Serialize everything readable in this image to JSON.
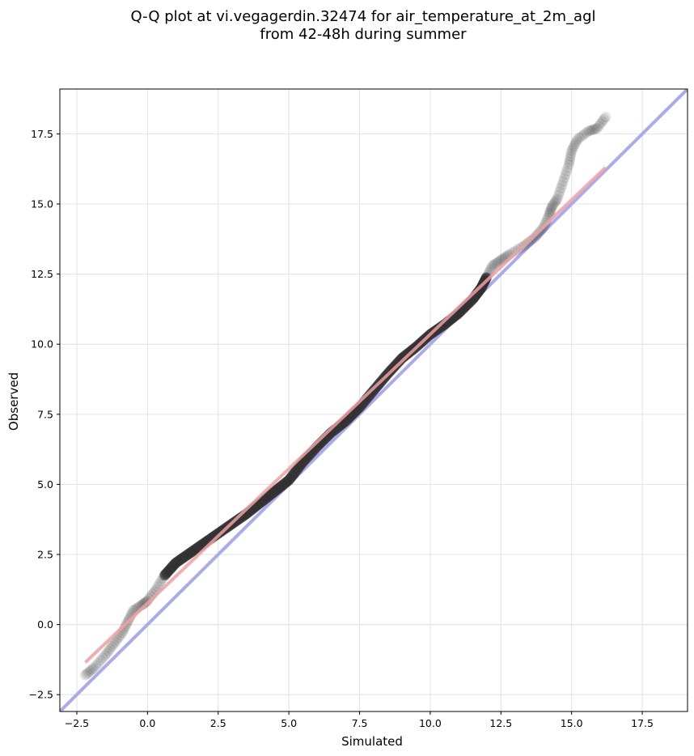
{
  "chart_data": {
    "type": "scatter",
    "title_line1": "Q-Q plot at vi.vegagerdin.32474 for air_temperature_at_2m_agl",
    "title_line2": "from 42-48h during summer",
    "xlabel": "Simulated",
    "ylabel": "Observed",
    "xlim": [
      -3.1,
      19.1
    ],
    "ylim": [
      -3.1,
      19.1
    ],
    "xticks": [
      -2.5,
      0.0,
      2.5,
      5.0,
      7.5,
      10.0,
      12.5,
      15.0,
      17.5
    ],
    "yticks": [
      -2.5,
      0.0,
      2.5,
      5.0,
      7.5,
      10.0,
      12.5,
      15.0,
      17.5
    ],
    "xtick_labels": [
      "−2.5",
      "0.0",
      "2.5",
      "5.0",
      "7.5",
      "10.0",
      "12.5",
      "15.0",
      "17.5"
    ],
    "ytick_labels": [
      "−2.5",
      "0.0",
      "2.5",
      "5.0",
      "7.5",
      "10.0",
      "12.5",
      "15.0",
      "17.5"
    ],
    "grid": true,
    "identity_line": {
      "x": [
        -3.1,
        19.1
      ],
      "y": [
        -3.1,
        19.1
      ],
      "color": "#aaaaee"
    },
    "fit_line": {
      "x": [
        -2.2,
        16.2
      ],
      "y": [
        -1.35,
        16.3
      ],
      "color": "#f0a0a0"
    },
    "points_color": "#333333",
    "quantile_curve": [
      [
        -2.2,
        -1.8
      ],
      [
        -1.9,
        -1.55
      ],
      [
        -1.5,
        -1.1
      ],
      [
        -1.2,
        -0.7
      ],
      [
        -0.9,
        -0.3
      ],
      [
        -0.7,
        0.1
      ],
      [
        -0.5,
        0.5
      ],
      [
        -0.2,
        0.7
      ],
      [
        0.0,
        0.85
      ],
      [
        0.3,
        1.25
      ],
      [
        0.6,
        1.75
      ],
      [
        1.0,
        2.2
      ],
      [
        1.5,
        2.55
      ],
      [
        2.0,
        2.9
      ],
      [
        2.5,
        3.25
      ],
      [
        3.0,
        3.6
      ],
      [
        3.5,
        3.95
      ],
      [
        4.0,
        4.35
      ],
      [
        4.5,
        4.75
      ],
      [
        5.0,
        5.15
      ],
      [
        5.5,
        5.8
      ],
      [
        6.0,
        6.35
      ],
      [
        6.5,
        6.85
      ],
      [
        7.0,
        7.25
      ],
      [
        7.5,
        7.75
      ],
      [
        8.0,
        8.35
      ],
      [
        8.5,
        8.95
      ],
      [
        9.0,
        9.5
      ],
      [
        9.5,
        9.9
      ],
      [
        10.0,
        10.35
      ],
      [
        10.5,
        10.7
      ],
      [
        11.0,
        11.1
      ],
      [
        11.5,
        11.6
      ],
      [
        11.8,
        12.0
      ],
      [
        12.0,
        12.4
      ],
      [
        12.2,
        12.8
      ],
      [
        12.5,
        13.0
      ],
      [
        12.8,
        13.2
      ],
      [
        13.3,
        13.5
      ],
      [
        13.7,
        13.8
      ],
      [
        14.0,
        14.15
      ],
      [
        14.2,
        14.6
      ],
      [
        14.3,
        14.9
      ],
      [
        14.5,
        15.2
      ],
      [
        14.7,
        15.8
      ],
      [
        14.9,
        16.4
      ],
      [
        15.0,
        16.9
      ],
      [
        15.2,
        17.3
      ],
      [
        15.6,
        17.6
      ],
      [
        15.9,
        17.7
      ],
      [
        16.2,
        18.1
      ]
    ]
  }
}
